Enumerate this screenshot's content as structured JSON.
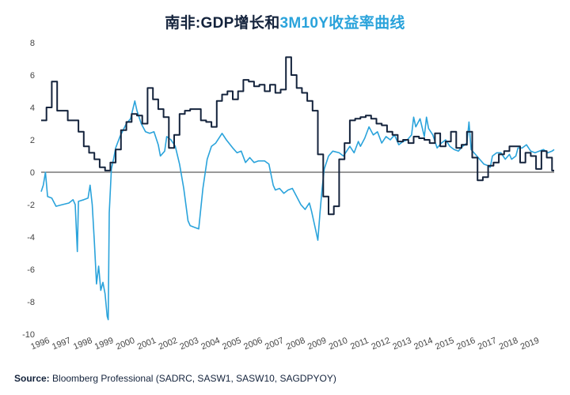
{
  "title": {
    "part1": "南非:GDP增长和",
    "part2": "3M10Y收益率曲线"
  },
  "source": {
    "label": "Source:",
    "text": "Bloomberg Professional (SADRC, SASW1, SASW10, SAGDPYOY)"
  },
  "colors": {
    "gdp": "#14233c",
    "curve": "#2aa3db",
    "zero": "#333333"
  },
  "chart_data": {
    "type": "line",
    "title": "南非:GDP增长和3M10Y收益率曲线",
    "xlim": [
      1996,
      2020.1
    ],
    "ylim": [
      -10,
      8
    ],
    "x_ticks": [
      "1996",
      "1997",
      "1998",
      "1999",
      "2000",
      "2001",
      "2002",
      "2003",
      "2004",
      "2005",
      "2006",
      "2007",
      "2008",
      "2009",
      "2010",
      "2011",
      "2012",
      "2013",
      "2014",
      "2015",
      "2016",
      "2017",
      "2018",
      "2019"
    ],
    "y_ticks": [
      "8",
      "6",
      "4",
      "2",
      "0",
      "-2",
      "-4",
      "-6",
      "-8",
      "-10"
    ],
    "y_tick_values": [
      8,
      6,
      4,
      2,
      0,
      -2,
      -4,
      -6,
      -8,
      -10
    ],
    "grid": false,
    "legend": "none",
    "series": [
      {
        "key": "gdp",
        "step": true,
        "points": [
          [
            1996.0,
            3.2
          ],
          [
            1996.25,
            4.0
          ],
          [
            1996.5,
            5.6
          ],
          [
            1996.75,
            3.8
          ],
          [
            1997.25,
            3.2
          ],
          [
            1997.75,
            2.5
          ],
          [
            1998.0,
            1.6
          ],
          [
            1998.25,
            1.2
          ],
          [
            1998.5,
            0.8
          ],
          [
            1998.75,
            0.3
          ],
          [
            1999.0,
            0.1
          ],
          [
            1999.25,
            0.6
          ],
          [
            1999.5,
            1.4
          ],
          [
            1999.75,
            2.6
          ],
          [
            2000.0,
            3.1
          ],
          [
            2000.25,
            3.6
          ],
          [
            2000.5,
            3.5
          ],
          [
            2000.75,
            3.0
          ],
          [
            2001.0,
            5.2
          ],
          [
            2001.25,
            4.5
          ],
          [
            2001.5,
            3.9
          ],
          [
            2001.75,
            3.4
          ],
          [
            2002.0,
            1.5
          ],
          [
            2002.25,
            2.3
          ],
          [
            2002.5,
            3.6
          ],
          [
            2002.75,
            3.8
          ],
          [
            2003.0,
            3.9
          ],
          [
            2003.5,
            3.2
          ],
          [
            2003.75,
            3.1
          ],
          [
            2004.0,
            2.8
          ],
          [
            2004.25,
            4.4
          ],
          [
            2004.5,
            4.8
          ],
          [
            2004.75,
            5.0
          ],
          [
            2005.0,
            4.5
          ],
          [
            2005.25,
            5.0
          ],
          [
            2005.5,
            5.7
          ],
          [
            2005.75,
            5.6
          ],
          [
            2006.0,
            5.3
          ],
          [
            2006.25,
            5.4
          ],
          [
            2006.5,
            5.0
          ],
          [
            2006.75,
            5.4
          ],
          [
            2007.0,
            4.9
          ],
          [
            2007.25,
            5.1
          ],
          [
            2007.5,
            7.1
          ],
          [
            2007.75,
            6.0
          ],
          [
            2008.0,
            5.2
          ],
          [
            2008.25,
            4.9
          ],
          [
            2008.5,
            4.4
          ],
          [
            2008.75,
            3.8
          ],
          [
            2009.0,
            1.1
          ],
          [
            2009.25,
            -1.5
          ],
          [
            2009.5,
            -2.6
          ],
          [
            2009.75,
            -2.1
          ],
          [
            2010.0,
            0.8
          ],
          [
            2010.25,
            1.8
          ],
          [
            2010.5,
            3.2
          ],
          [
            2010.75,
            3.3
          ],
          [
            2011.0,
            3.4
          ],
          [
            2011.25,
            3.5
          ],
          [
            2011.5,
            3.3
          ],
          [
            2011.75,
            3.0
          ],
          [
            2012.0,
            2.9
          ],
          [
            2012.25,
            2.5
          ],
          [
            2012.5,
            2.3
          ],
          [
            2012.75,
            1.9
          ],
          [
            2013.0,
            2.0
          ],
          [
            2013.25,
            1.8
          ],
          [
            2013.5,
            2.2
          ],
          [
            2013.75,
            2.1
          ],
          [
            2014.0,
            2.0
          ],
          [
            2014.25,
            1.8
          ],
          [
            2014.5,
            2.4
          ],
          [
            2014.75,
            1.6
          ],
          [
            2015.0,
            1.9
          ],
          [
            2015.25,
            2.5
          ],
          [
            2015.5,
            1.5
          ],
          [
            2015.75,
            1.7
          ],
          [
            2016.0,
            2.5
          ],
          [
            2016.25,
            0.9
          ],
          [
            2016.5,
            -0.5
          ],
          [
            2016.75,
            -0.3
          ],
          [
            2017.0,
            0.4
          ],
          [
            2017.25,
            0.6
          ],
          [
            2017.5,
            1.1
          ],
          [
            2017.75,
            1.3
          ],
          [
            2018.0,
            1.6
          ],
          [
            2018.5,
            0.6
          ],
          [
            2018.75,
            1.2
          ],
          [
            2019.0,
            1.0
          ],
          [
            2019.25,
            0.2
          ],
          [
            2019.5,
            1.3
          ],
          [
            2019.75,
            0.9
          ],
          [
            2020.0,
            0.1
          ],
          [
            2020.1,
            0.1
          ]
        ]
      },
      {
        "key": "curve",
        "step": false,
        "points": [
          [
            1996.0,
            -1.2
          ],
          [
            1996.1,
            -0.8
          ],
          [
            1996.2,
            0.0
          ],
          [
            1996.3,
            -1.5
          ],
          [
            1996.5,
            -1.6
          ],
          [
            1996.7,
            -2.1
          ],
          [
            1997.0,
            -2.0
          ],
          [
            1997.3,
            -1.9
          ],
          [
            1997.5,
            -1.7
          ],
          [
            1997.6,
            -2.0
          ],
          [
            1997.7,
            -4.9
          ],
          [
            1997.75,
            -1.8
          ],
          [
            1998.0,
            -1.7
          ],
          [
            1998.2,
            -1.6
          ],
          [
            1998.3,
            -0.8
          ],
          [
            1998.4,
            -2.0
          ],
          [
            1998.5,
            -4.3
          ],
          [
            1998.6,
            -6.9
          ],
          [
            1998.7,
            -5.8
          ],
          [
            1998.8,
            -7.3
          ],
          [
            1998.9,
            -6.8
          ],
          [
            1999.0,
            -7.5
          ],
          [
            1999.1,
            -8.9
          ],
          [
            1999.15,
            -9.1
          ],
          [
            1999.2,
            -2.5
          ],
          [
            1999.3,
            0.2
          ],
          [
            1999.4,
            0.8
          ],
          [
            1999.5,
            1.5
          ],
          [
            1999.7,
            2.2
          ],
          [
            2000.0,
            3.0
          ],
          [
            2000.2,
            3.3
          ],
          [
            2000.4,
            4.4
          ],
          [
            2000.5,
            3.8
          ],
          [
            2000.7,
            3.0
          ],
          [
            2000.9,
            2.5
          ],
          [
            2001.1,
            2.4
          ],
          [
            2001.3,
            2.5
          ],
          [
            2001.5,
            1.7
          ],
          [
            2001.6,
            1.0
          ],
          [
            2001.8,
            1.3
          ],
          [
            2001.9,
            2.2
          ],
          [
            2002.0,
            2.1
          ],
          [
            2002.1,
            2.0
          ],
          [
            2002.3,
            1.6
          ],
          [
            2002.5,
            0.5
          ],
          [
            2002.7,
            -1.0
          ],
          [
            2002.8,
            -2.0
          ],
          [
            2002.9,
            -3.0
          ],
          [
            2003.0,
            -3.3
          ],
          [
            2003.2,
            -3.4
          ],
          [
            2003.4,
            -3.5
          ],
          [
            2003.6,
            -1.0
          ],
          [
            2003.8,
            0.8
          ],
          [
            2004.0,
            1.6
          ],
          [
            2004.2,
            1.8
          ],
          [
            2004.5,
            2.4
          ],
          [
            2004.7,
            2.0
          ],
          [
            2005.0,
            1.5
          ],
          [
            2005.2,
            1.2
          ],
          [
            2005.4,
            1.3
          ],
          [
            2005.6,
            0.6
          ],
          [
            2005.8,
            0.9
          ],
          [
            2006.0,
            0.6
          ],
          [
            2006.2,
            0.7
          ],
          [
            2006.5,
            0.7
          ],
          [
            2006.7,
            0.5
          ],
          [
            2006.9,
            -0.8
          ],
          [
            2007.0,
            -1.1
          ],
          [
            2007.2,
            -1.0
          ],
          [
            2007.4,
            -1.3
          ],
          [
            2007.6,
            -1.1
          ],
          [
            2007.8,
            -1.0
          ],
          [
            2008.0,
            -1.5
          ],
          [
            2008.2,
            -2.0
          ],
          [
            2008.4,
            -2.3
          ],
          [
            2008.6,
            -1.9
          ],
          [
            2008.7,
            -2.4
          ],
          [
            2008.8,
            -3.0
          ],
          [
            2008.9,
            -3.6
          ],
          [
            2009.0,
            -4.2
          ],
          [
            2009.1,
            -2.5
          ],
          [
            2009.2,
            -1.0
          ],
          [
            2009.3,
            0.2
          ],
          [
            2009.5,
            1.0
          ],
          [
            2009.7,
            1.3
          ],
          [
            2010.0,
            1.2
          ],
          [
            2010.2,
            1.0
          ],
          [
            2010.4,
            1.4
          ],
          [
            2010.5,
            1.6
          ],
          [
            2010.7,
            1.2
          ],
          [
            2010.9,
            1.9
          ],
          [
            2011.0,
            1.6
          ],
          [
            2011.2,
            2.1
          ],
          [
            2011.4,
            2.8
          ],
          [
            2011.6,
            2.3
          ],
          [
            2011.8,
            2.5
          ],
          [
            2012.0,
            1.8
          ],
          [
            2012.2,
            2.2
          ],
          [
            2012.4,
            2.0
          ],
          [
            2012.6,
            2.3
          ],
          [
            2012.8,
            1.7
          ],
          [
            2013.0,
            1.9
          ],
          [
            2013.2,
            2.0
          ],
          [
            2013.4,
            2.3
          ],
          [
            2013.5,
            3.4
          ],
          [
            2013.6,
            2.8
          ],
          [
            2013.8,
            3.3
          ],
          [
            2014.0,
            2.2
          ],
          [
            2014.1,
            3.4
          ],
          [
            2014.2,
            2.7
          ],
          [
            2014.4,
            2.3
          ],
          [
            2014.6,
            1.5
          ],
          [
            2014.8,
            1.8
          ],
          [
            2015.0,
            2.0
          ],
          [
            2015.2,
            1.6
          ],
          [
            2015.4,
            1.4
          ],
          [
            2015.6,
            1.3
          ],
          [
            2015.8,
            1.6
          ],
          [
            2016.0,
            1.8
          ],
          [
            2016.1,
            3.1
          ],
          [
            2016.2,
            1.4
          ],
          [
            2016.4,
            1.1
          ],
          [
            2016.6,
            0.8
          ],
          [
            2016.8,
            0.5
          ],
          [
            2017.0,
            0.4
          ],
          [
            2017.1,
            0.3
          ],
          [
            2017.2,
            1.0
          ],
          [
            2017.4,
            1.2
          ],
          [
            2017.6,
            1.2
          ],
          [
            2017.8,
            0.8
          ],
          [
            2018.0,
            1.1
          ],
          [
            2018.1,
            0.8
          ],
          [
            2018.3,
            1.0
          ],
          [
            2018.4,
            1.5
          ],
          [
            2018.6,
            1.5
          ],
          [
            2018.8,
            1.7
          ],
          [
            2019.0,
            1.3
          ],
          [
            2019.2,
            1.2
          ],
          [
            2019.4,
            1.3
          ],
          [
            2019.6,
            1.4
          ],
          [
            2019.8,
            1.2
          ],
          [
            2020.0,
            1.3
          ],
          [
            2020.1,
            1.4
          ]
        ]
      }
    ]
  }
}
